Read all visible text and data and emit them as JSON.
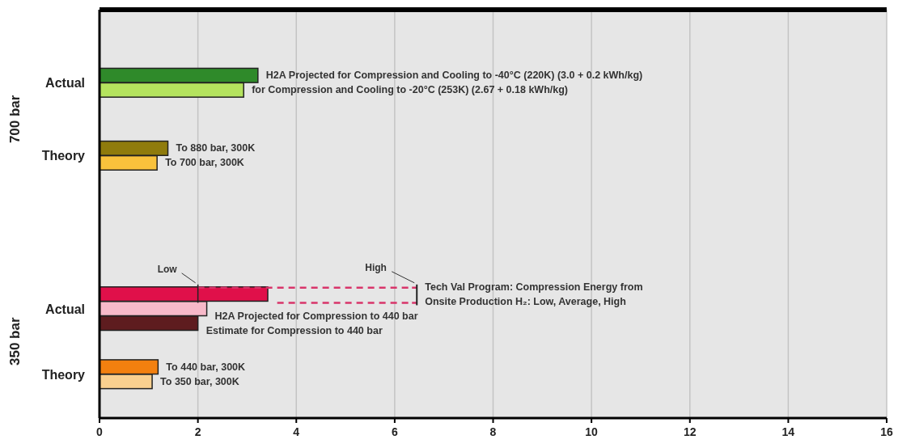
{
  "chart_data": {
    "type": "bar",
    "orientation": "horizontal",
    "categories": [
      null,
      null,
      null,
      null,
      "H2A Projected for Compression and Cooling to -40°C (220K) (3.0 + 0.2 kWh/kg)",
      "for Compression and Cooling to -20°C (253K) (2.67 + 0.18 kWh/kg)",
      null,
      null,
      null,
      "To 880 bar, 300K",
      "To 700 bar, 300K",
      null,
      null,
      null,
      null,
      null,
      null,
      null,
      null,
      "Tech Val Program: Compression Energy from Onsite Production H₂: Low, Average, High",
      "H2A Projected for Compression to 440 bar",
      "Estimate for Compression to 440 bar",
      null,
      null,
      "To 440 bar, 300K",
      "To 350 bar, 300K",
      null,
      null
    ],
    "values": [
      null,
      null,
      null,
      null,
      3.22,
      2.93,
      null,
      null,
      null,
      1.39,
      1.17,
      null,
      null,
      null,
      null,
      null,
      null,
      null,
      null,
      3.42,
      2.18,
      2.0,
      null,
      null,
      1.19,
      1.07,
      null,
      null
    ],
    "colors": [
      null,
      null,
      null,
      null,
      "#2f8a2a",
      "#b4e35e",
      null,
      null,
      null,
      "#8f7b0c",
      "#f9c23c",
      null,
      null,
      null,
      null,
      null,
      null,
      null,
      null,
      "#e0104a",
      "#f7b9c9",
      "#5e1c1f",
      null,
      null,
      "#f2800f",
      "#f9d08f",
      null,
      null
    ],
    "errors": [
      null,
      null,
      null,
      null,
      null,
      null,
      null,
      null,
      null,
      null,
      null,
      null,
      null,
      null,
      null,
      null,
      null,
      null,
      null,
      [
        2.0,
        6.45
      ],
      null,
      null,
      null,
      null,
      null,
      null,
      null,
      null
    ],
    "xlim": [
      0,
      16
    ],
    "xticks": [
      0,
      2,
      4,
      6,
      8,
      10,
      12,
      14,
      16
    ],
    "grid": "x",
    "annotations": [
      "Actual",
      "Theory",
      "Actual",
      "Theory",
      "700 bar",
      "350 bar",
      "Low",
      "High"
    ]
  }
}
